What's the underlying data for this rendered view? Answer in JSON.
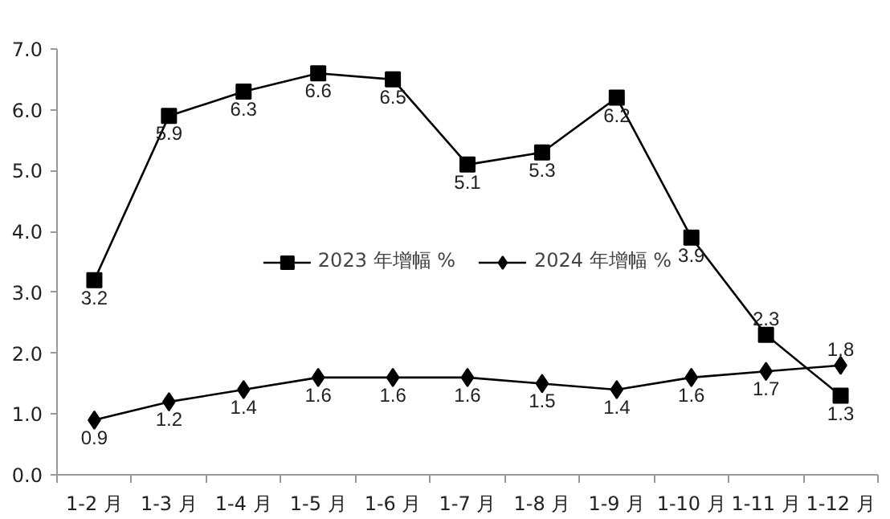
{
  "chart_data": {
    "type": "line",
    "categories": [
      "1-2 月",
      "1-3 月",
      "1-4 月",
      "1-5 月",
      "1-6 月",
      "1-7 月",
      "1-8 月",
      "1-9 月",
      "1-10 月",
      "1-11 月",
      "1-12 月"
    ],
    "series": [
      {
        "name": "2023 年增幅 %",
        "color": "#000000",
        "marker": "square",
        "values": [
          3.2,
          5.9,
          6.3,
          6.6,
          6.5,
          5.1,
          5.3,
          6.2,
          3.9,
          2.3,
          1.3
        ]
      },
      {
        "name": "2024 年增幅 %",
        "color": "#000000",
        "marker": "diamond",
        "values": [
          0.9,
          1.2,
          1.4,
          1.6,
          1.6,
          1.6,
          1.5,
          1.4,
          1.6,
          1.7,
          1.8
        ]
      }
    ],
    "ylim": [
      0,
      7
    ],
    "yticks": [
      {
        "value": 0,
        "label": "0.0"
      },
      {
        "value": 1,
        "label": "1.0"
      },
      {
        "value": 2,
        "label": "2.0"
      },
      {
        "value": 3,
        "label": "3.0"
      },
      {
        "value": 4,
        "label": "4.0"
      },
      {
        "value": 5,
        "label": "5.0"
      },
      {
        "value": 6,
        "label": "6.0"
      },
      {
        "value": 7,
        "label": "7.0"
      }
    ],
    "grid": false,
    "legend": "center",
    "data_labels": true,
    "line_style": "solid"
  }
}
